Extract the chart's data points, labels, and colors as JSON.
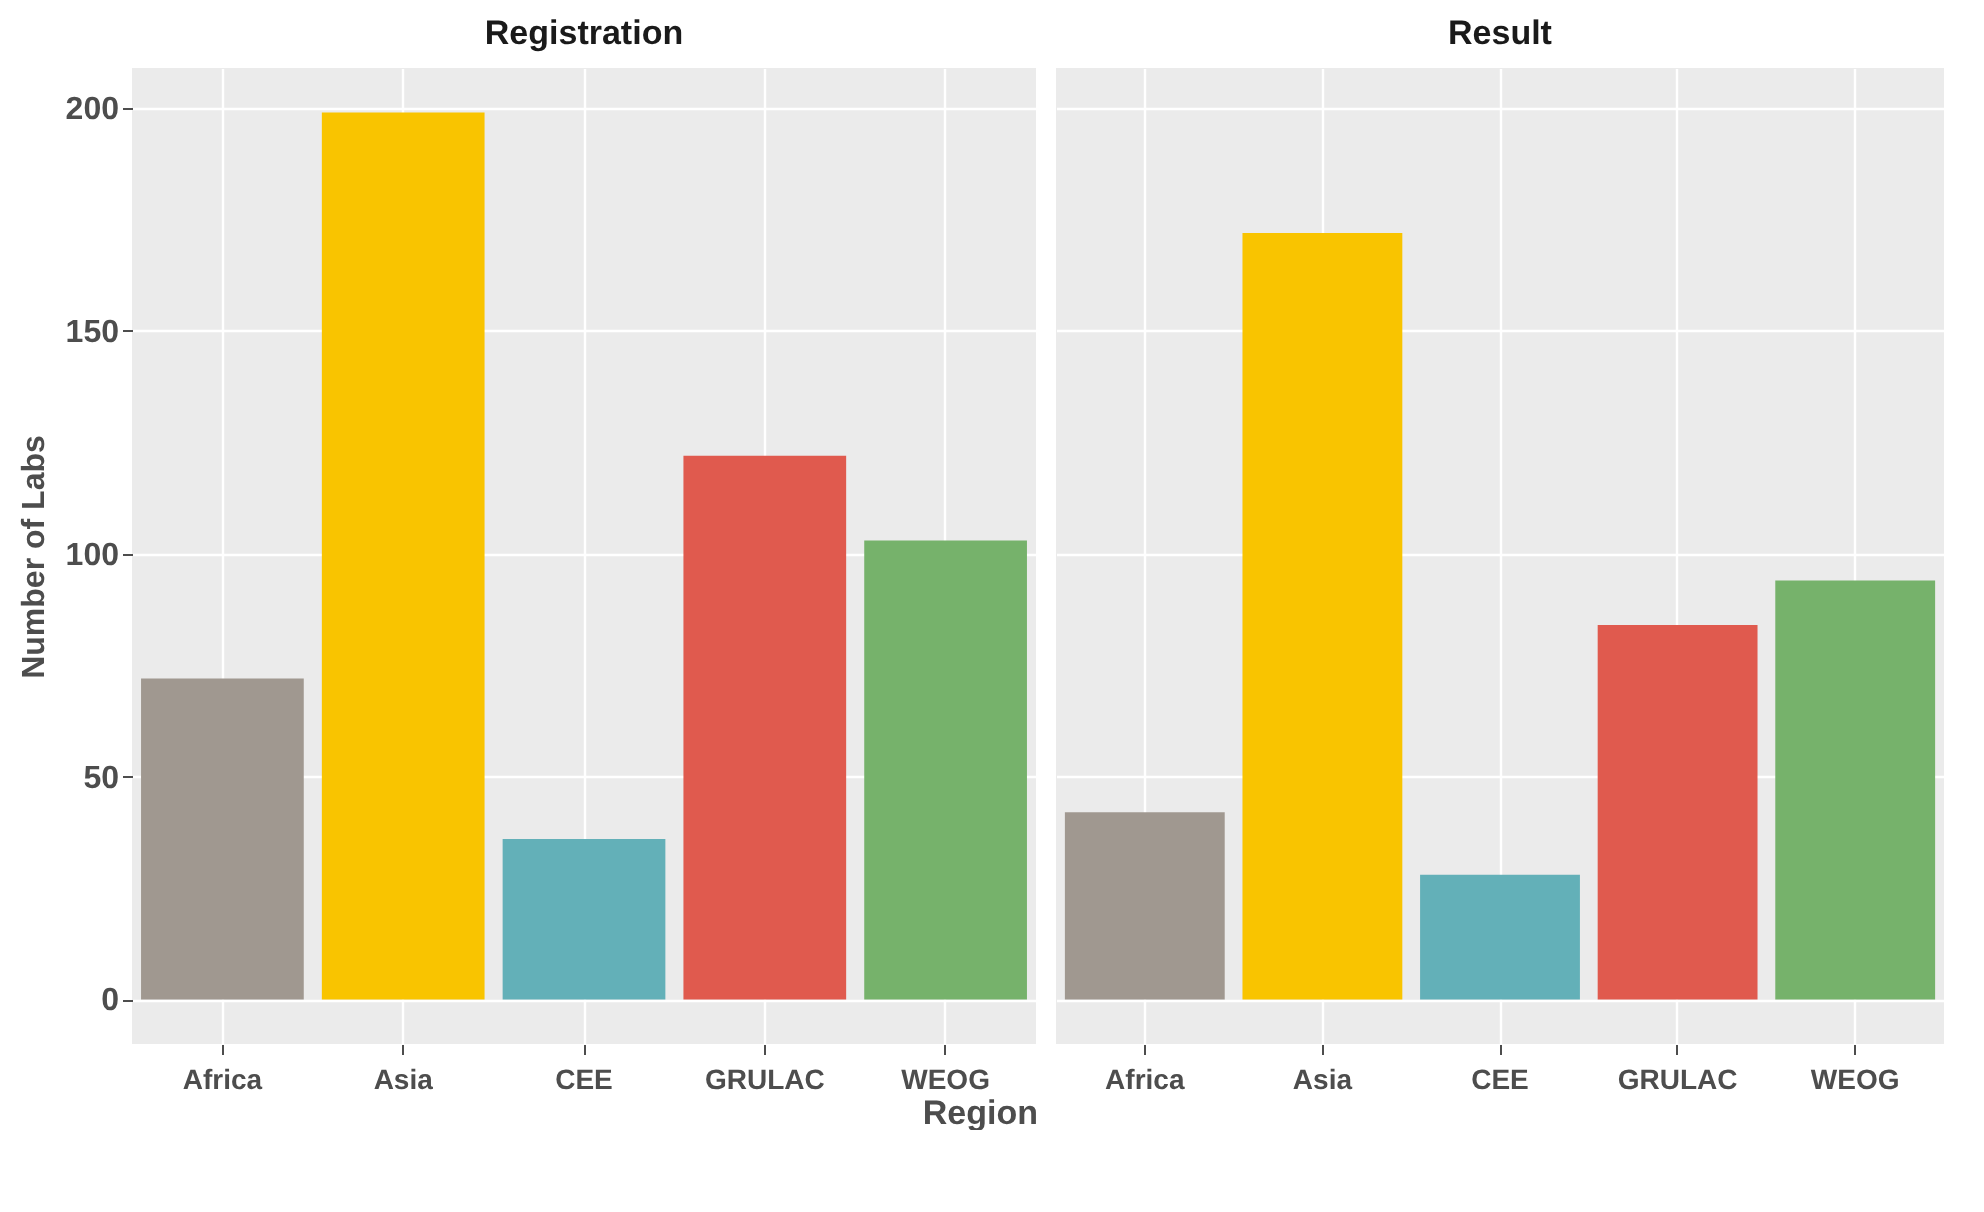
{
  "chart_data": [
    {
      "type": "bar",
      "title": "Registration",
      "xlabel": "Region",
      "ylabel": "Number of Labs",
      "categories": [
        "Africa",
        "Asia",
        "CEE",
        "GRULAC",
        "WEOG"
      ],
      "values": [
        72,
        199,
        36,
        122,
        103
      ],
      "colors": [
        "#a09890",
        "#f9c400",
        "#63b0b8",
        "#e05a4e",
        "#76b26b"
      ],
      "ylim": [
        -10,
        209
      ],
      "yticks": [
        0,
        50,
        100,
        150,
        200
      ],
      "grid": true
    },
    {
      "type": "bar",
      "title": "Result",
      "categories": [
        "Africa",
        "Asia",
        "CEE",
        "GRULAC",
        "WEOG"
      ],
      "values": [
        42,
        172,
        28,
        84,
        94
      ],
      "colors": [
        "#a09890",
        "#f9c400",
        "#63b0b8",
        "#e05a4e",
        "#76b26b"
      ],
      "ylim": [
        -10,
        209
      ],
      "yticks": [
        0,
        50,
        100,
        150,
        200
      ],
      "grid": true,
      "tick_labels": "x"
    }
  ]
}
